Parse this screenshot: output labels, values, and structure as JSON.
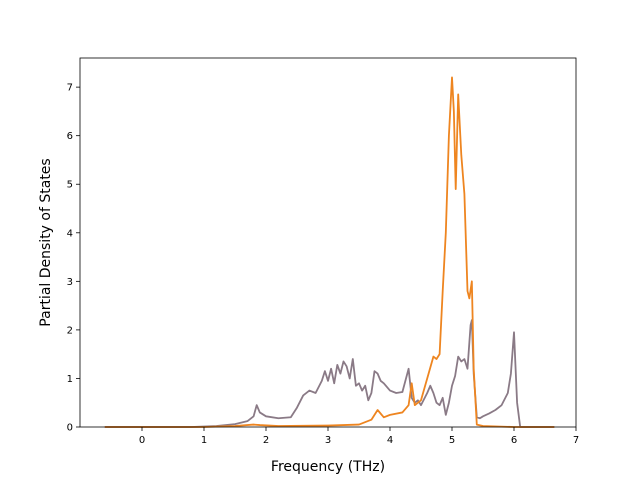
{
  "chart_data": {
    "type": "line",
    "title": "",
    "xlabel": "Frequency (THz)",
    "ylabel": "Partial Density of States",
    "xlim": [
      -1.0,
      7.0
    ],
    "ylim": [
      0,
      7.6
    ],
    "xticks": [
      0,
      1,
      2,
      3,
      4,
      5,
      6,
      7
    ],
    "yticks": [
      0,
      1,
      2,
      3,
      4,
      5,
      6,
      7
    ],
    "grid": false,
    "series": [
      {
        "color": "#8a7a86",
        "x": [
          -0.6,
          0.0,
          0.8,
          1.2,
          1.5,
          1.7,
          1.8,
          1.85,
          1.9,
          2.0,
          2.2,
          2.4,
          2.5,
          2.6,
          2.7,
          2.8,
          2.9,
          2.95,
          3.0,
          3.05,
          3.1,
          3.15,
          3.2,
          3.25,
          3.3,
          3.35,
          3.4,
          3.45,
          3.5,
          3.55,
          3.6,
          3.65,
          3.7,
          3.75,
          3.8,
          3.85,
          3.9,
          4.0,
          4.1,
          4.2,
          4.3,
          4.35,
          4.4,
          4.45,
          4.5,
          4.6,
          4.65,
          4.7,
          4.75,
          4.8,
          4.85,
          4.9,
          4.95,
          5.0,
          5.05,
          5.1,
          5.15,
          5.2,
          5.25,
          5.3,
          5.32,
          5.35,
          5.4,
          5.45,
          5.5,
          5.6,
          5.7,
          5.8,
          5.9,
          5.95,
          6.0,
          6.05,
          6.1,
          6.3,
          6.65
        ],
        "y": [
          0,
          0,
          0,
          0.02,
          0.06,
          0.12,
          0.22,
          0.45,
          0.3,
          0.22,
          0.18,
          0.2,
          0.4,
          0.65,
          0.75,
          0.7,
          0.95,
          1.15,
          0.95,
          1.2,
          0.9,
          1.28,
          1.1,
          1.35,
          1.25,
          1.0,
          1.4,
          0.85,
          0.9,
          0.75,
          0.85,
          0.55,
          0.7,
          1.15,
          1.1,
          0.95,
          0.9,
          0.75,
          0.7,
          0.72,
          1.2,
          0.6,
          0.5,
          0.55,
          0.45,
          0.7,
          0.85,
          0.7,
          0.5,
          0.45,
          0.6,
          0.25,
          0.5,
          0.85,
          1.05,
          1.45,
          1.35,
          1.4,
          1.2,
          2.1,
          2.2,
          1.1,
          0.2,
          0.18,
          0.22,
          0.28,
          0.35,
          0.45,
          0.7,
          1.1,
          1.95,
          0.5,
          0,
          0,
          0
        ]
      },
      {
        "color": "#ee8520",
        "x": [
          -0.6,
          0.0,
          1.0,
          1.5,
          1.8,
          1.9,
          2.2,
          3.0,
          3.5,
          3.7,
          3.8,
          3.9,
          4.0,
          4.2,
          4.3,
          4.35,
          4.4,
          4.5,
          4.6,
          4.7,
          4.75,
          4.8,
          4.85,
          4.9,
          4.95,
          5.0,
          5.03,
          5.06,
          5.1,
          5.15,
          5.2,
          5.25,
          5.28,
          5.32,
          5.35,
          5.4,
          5.5,
          6.0,
          6.65
        ],
        "y": [
          0,
          0,
          0,
          0.02,
          0.05,
          0.04,
          0.02,
          0.03,
          0.05,
          0.15,
          0.35,
          0.2,
          0.25,
          0.3,
          0.45,
          0.9,
          0.45,
          0.55,
          1.0,
          1.45,
          1.4,
          1.5,
          2.8,
          4.0,
          6.0,
          7.2,
          6.5,
          4.9,
          6.85,
          5.6,
          4.8,
          2.8,
          2.65,
          3.0,
          1.2,
          0.05,
          0.02,
          0,
          0
        ]
      }
    ]
  }
}
